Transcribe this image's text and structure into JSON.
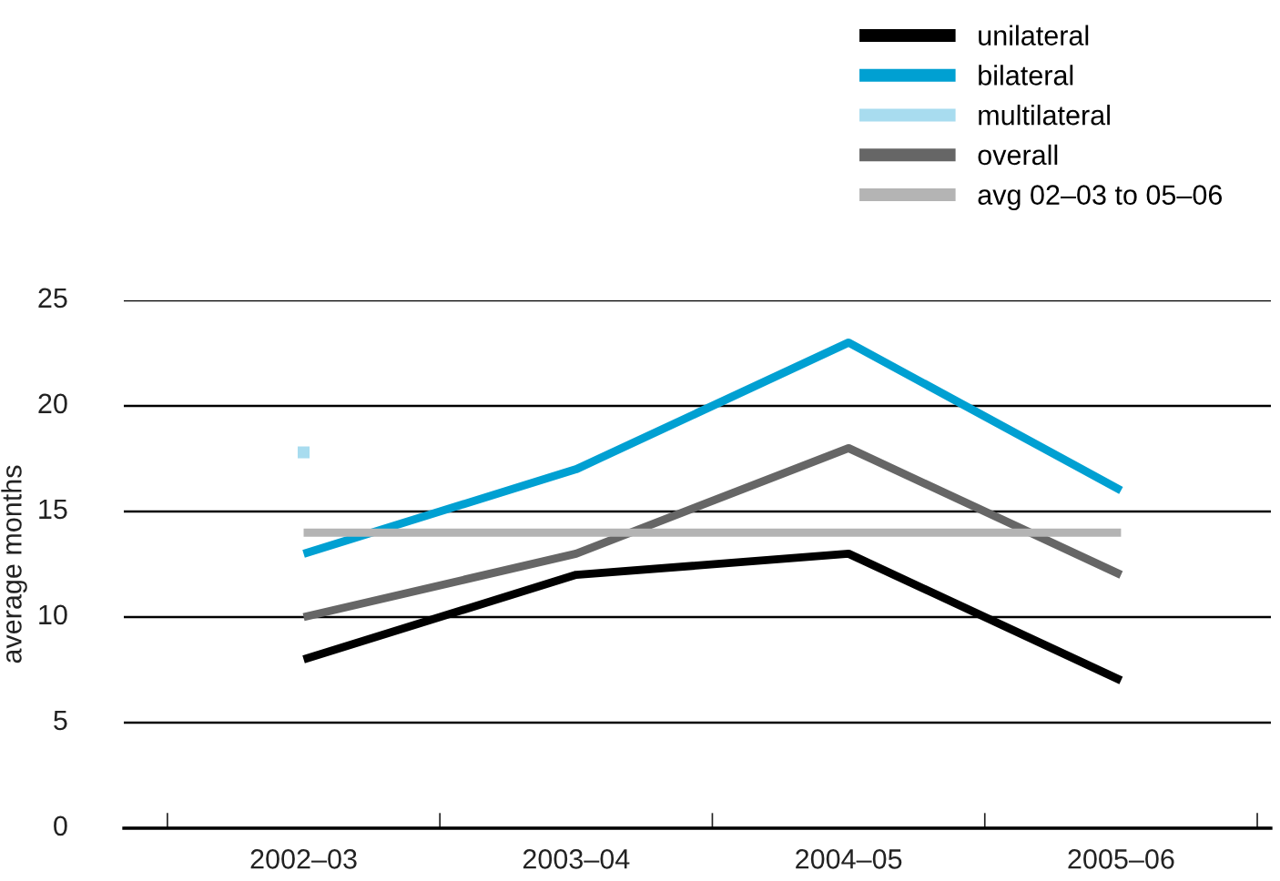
{
  "chart_data": {
    "type": "line",
    "ylabel": "average months",
    "categories": [
      "2002–03",
      "2003–04",
      "2004–05",
      "2005–06"
    ],
    "series": [
      {
        "name": "unilateral",
        "color": "#000000",
        "values": [
          8,
          12,
          13,
          7
        ]
      },
      {
        "name": "bilateral",
        "color": "#00a0d2",
        "values": [
          13,
          17,
          23,
          16
        ]
      },
      {
        "name": "multilateral",
        "color": "#a8dcef",
        "values": [
          17.8,
          null,
          null,
          null
        ],
        "marker": "square"
      },
      {
        "name": "overall",
        "color": "#666666",
        "values": [
          10,
          13,
          18,
          12
        ]
      },
      {
        "name": "avg 02–03 to 05–06",
        "color": "#b4b4b4",
        "values": [
          14,
          14,
          14,
          14
        ]
      }
    ],
    "ylim": [
      0,
      25
    ],
    "yticks": [
      0,
      5,
      10,
      15,
      20,
      25
    ],
    "grid": "y",
    "legend": "top right"
  }
}
